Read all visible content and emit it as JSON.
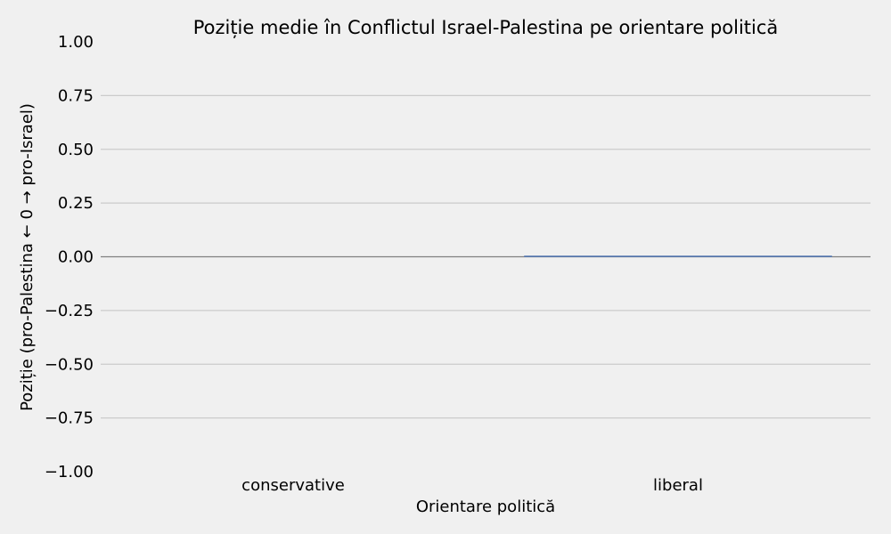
{
  "chart_data": {
    "type": "bar",
    "title": "Poziție medie în Conflictul Israel-Palestina pe orientare politică",
    "xlabel": "Orientare politică",
    "ylabel": "Poziție (pro-Palestina ← 0 → pro-Israel)",
    "categories": [
      "conservative",
      "liberal"
    ],
    "values": [
      0.0,
      0.005
    ],
    "ylim": [
      -1.0,
      1.0
    ],
    "yticks": [
      1.0,
      0.75,
      0.5,
      0.25,
      0.0,
      -0.25,
      -0.5,
      -0.75,
      -1.0
    ],
    "ytick_labels": [
      "1.00",
      "0.75",
      "0.50",
      "0.25",
      "0.00",
      "−0.25",
      "−0.50",
      "−0.75",
      "−1.00"
    ],
    "grid": "horizontal",
    "colors": {
      "background": "#f0f0f0",
      "grid": "#cbcbcb",
      "zero_line": "#808080",
      "bar": "#4c72b0"
    }
  }
}
